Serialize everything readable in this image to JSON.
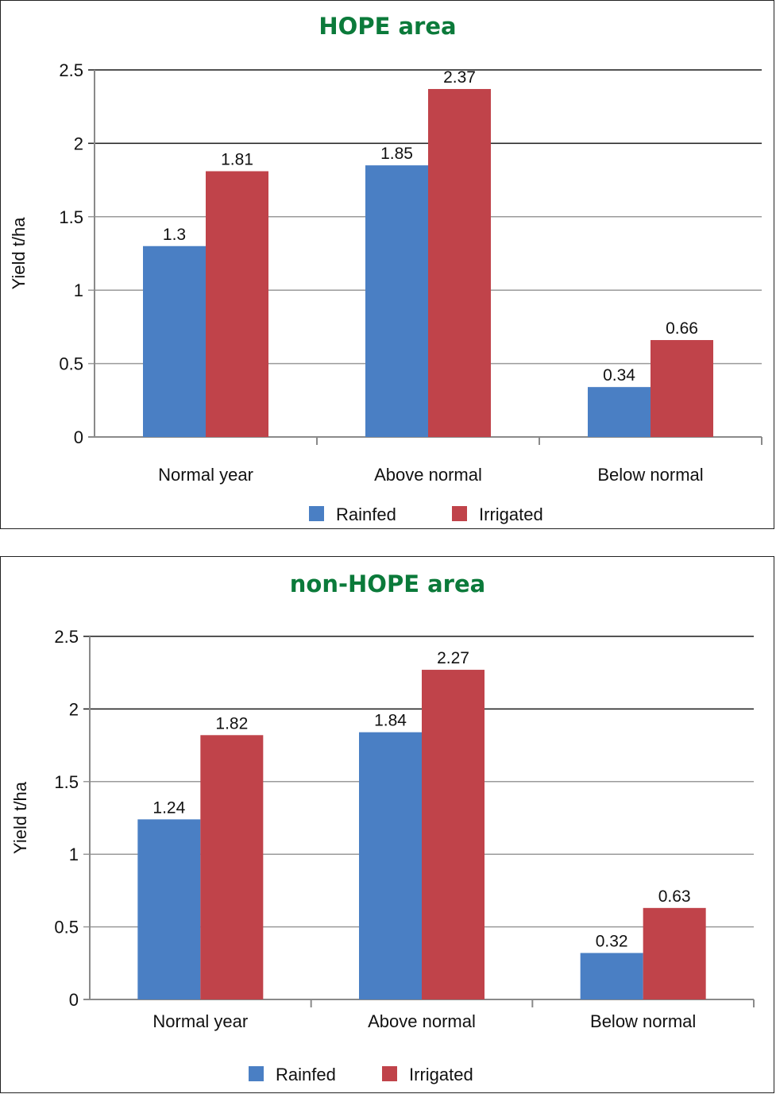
{
  "colors": {
    "title": "#0b7a3a",
    "rainfed": "#4a7fc4",
    "irrigated": "#c0434a",
    "grid": "#9a9a9a",
    "grid_dark": "#1a1a1a",
    "axis": "#8a8a8a"
  },
  "chart_data": [
    {
      "type": "bar",
      "title": "HOPE area",
      "xlabel": "",
      "ylabel": "Yield t/ha",
      "ylim": [
        0,
        2.5
      ],
      "yticks": [
        "0",
        "0.5",
        "1",
        "1.5",
        "2",
        "2.5"
      ],
      "categories": [
        "Normal year",
        "Above normal",
        "Below normal"
      ],
      "series": [
        {
          "name": "Rainfed",
          "values": [
            1.3,
            1.85,
            0.34
          ],
          "labels": [
            "1.3",
            "1.85",
            "0.34"
          ]
        },
        {
          "name": "Irrigated",
          "values": [
            1.81,
            2.37,
            0.66
          ],
          "labels": [
            "1.81",
            "2.37",
            "0.66"
          ]
        }
      ],
      "grid": true,
      "legend": "bottom"
    },
    {
      "type": "bar",
      "title": "non-HOPE area",
      "xlabel": "",
      "ylabel": "Yield t/ha",
      "ylim": [
        0,
        2.5
      ],
      "yticks": [
        "0",
        "0.5",
        "1",
        "1.5",
        "2",
        "2.5"
      ],
      "categories": [
        "Normal year",
        "Above normal",
        "Below normal"
      ],
      "series": [
        {
          "name": "Rainfed",
          "values": [
            1.24,
            1.84,
            0.32
          ],
          "labels": [
            "1.24",
            "1.84",
            "0.32"
          ]
        },
        {
          "name": "Irrigated",
          "values": [
            1.82,
            2.27,
            0.63
          ],
          "labels": [
            "1.82",
            "2.27",
            "0.63"
          ]
        }
      ],
      "grid": true,
      "legend": "bottom"
    }
  ]
}
